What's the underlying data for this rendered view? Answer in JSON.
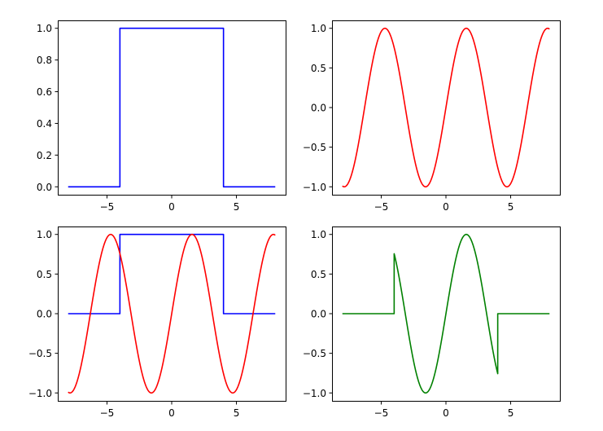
{
  "chart_data": [
    {
      "type": "line",
      "title": "",
      "xlabel": "",
      "ylabel": "",
      "xlim": [
        -8.8,
        8.8
      ],
      "ylim": [
        -0.05,
        1.05
      ],
      "xticks": [
        -5,
        0,
        5
      ],
      "xtick_labels": [
        "−5",
        "0",
        "5"
      ],
      "yticks": [
        0.0,
        0.2,
        0.4,
        0.6,
        0.8,
        1.0
      ],
      "ytick_labels": [
        "0.0",
        "0.2",
        "0.4",
        "0.6",
        "0.8",
        "1.0"
      ],
      "grid": false,
      "series": [
        {
          "color": "#0000ff",
          "function": "rect",
          "x": [
            -8,
            -4,
            -4,
            4,
            4,
            8
          ],
          "y": [
            0,
            0,
            1,
            1,
            0,
            0
          ]
        }
      ]
    },
    {
      "type": "line",
      "title": "",
      "xlabel": "",
      "ylabel": "",
      "xlim": [
        -8.8,
        8.8
      ],
      "ylim": [
        -1.1,
        1.1
      ],
      "xticks": [
        -5,
        0,
        5
      ],
      "xtick_labels": [
        "−5",
        "0",
        "5"
      ],
      "yticks": [
        -1.0,
        -0.5,
        0.0,
        0.5,
        1.0
      ],
      "ytick_labels": [
        "−1.0",
        "−0.5",
        "0.0",
        "0.5",
        "1.0"
      ],
      "grid": false,
      "series": [
        {
          "color": "#ff0000",
          "function": "sin",
          "x_range": [
            -8,
            8
          ]
        }
      ]
    },
    {
      "type": "line",
      "title": "",
      "xlabel": "",
      "ylabel": "",
      "xlim": [
        -8.8,
        8.8
      ],
      "ylim": [
        -1.1,
        1.1
      ],
      "xticks": [
        -5,
        0,
        5
      ],
      "xtick_labels": [
        "−5",
        "0",
        "5"
      ],
      "yticks": [
        -1.0,
        -0.5,
        0.0,
        0.5,
        1.0
      ],
      "ytick_labels": [
        "−1.0",
        "−0.5",
        "0.0",
        "0.5",
        "1.0"
      ],
      "grid": false,
      "series": [
        {
          "color": "#0000ff",
          "function": "rect",
          "x": [
            -8,
            -4,
            -4,
            4,
            4,
            8
          ],
          "y": [
            0,
            0,
            1,
            1,
            0,
            0
          ]
        },
        {
          "color": "#ff0000",
          "function": "sin",
          "x_range": [
            -8,
            8
          ]
        }
      ]
    },
    {
      "type": "line",
      "title": "",
      "xlabel": "",
      "ylabel": "",
      "xlim": [
        -8.8,
        8.8
      ],
      "ylim": [
        -1.1,
        1.1
      ],
      "xticks": [
        -5,
        0,
        5
      ],
      "xtick_labels": [
        "−5",
        "0",
        "5"
      ],
      "yticks": [
        -1.0,
        -0.5,
        0.0,
        0.5,
        1.0
      ],
      "ytick_labels": [
        "−1.0",
        "−0.5",
        "0.0",
        "0.5",
        "1.0"
      ],
      "grid": false,
      "series": [
        {
          "color": "#008000",
          "function": "rect*sin",
          "x_range": [
            -8,
            8
          ]
        }
      ]
    }
  ]
}
